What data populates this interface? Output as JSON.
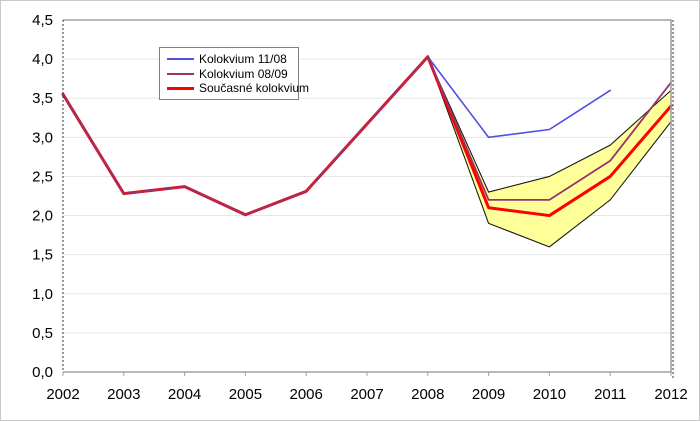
{
  "chart_data": {
    "type": "line",
    "title": "",
    "xlabel": "",
    "ylabel": "",
    "x": [
      2002,
      2003,
      2004,
      2005,
      2006,
      2007,
      2008,
      2009,
      2010,
      2011,
      2012
    ],
    "x_tick_labels": [
      "2002",
      "2003",
      "2004",
      "2005",
      "2006",
      "2007",
      "2008",
      "2009",
      "2010",
      "2011",
      "2012"
    ],
    "ylim": [
      0,
      4.5
    ],
    "y_tick_step": 0.5,
    "y_tick_labels": [
      "0,0",
      "0,5",
      "1,0",
      "1,5",
      "2,0",
      "2,5",
      "3,0",
      "3,5",
      "4,0",
      "4,5"
    ],
    "grid": "horizontal",
    "legend_position": "top-left-inside",
    "series": [
      {
        "key": "kolokvium-11-08",
        "name": "Kolokvium 11/08",
        "color": "#5050e0",
        "width": 1.6,
        "values": [
          3.55,
          2.28,
          2.37,
          2.01,
          2.31,
          3.17,
          4.03,
          3.0,
          3.1,
          3.6,
          null
        ]
      },
      {
        "key": "kolokvium-08-09",
        "name": "Kolokvium 08/09",
        "color": "#993366",
        "width": 1.8,
        "values": [
          3.55,
          2.28,
          2.37,
          2.01,
          2.31,
          3.17,
          4.03,
          2.2,
          2.2,
          2.7,
          3.7
        ]
      },
      {
        "key": "soucasne-kolokvium",
        "name": "Současné kolokvium",
        "color": "#ff0000",
        "width": 3,
        "values": [
          3.55,
          2.28,
          2.37,
          2.01,
          2.31,
          3.17,
          4.03,
          2.1,
          2.0,
          2.5,
          3.4
        ]
      }
    ],
    "uncertainty_band": {
      "x": [
        2008,
        2009,
        2010,
        2011,
        2012
      ],
      "upper": [
        4.03,
        2.3,
        2.5,
        2.9,
        3.6
      ],
      "lower": [
        4.03,
        1.9,
        1.6,
        2.2,
        3.2
      ],
      "fill": "#ffff99",
      "edge": "#1a1a1a"
    },
    "colors": {
      "frame": "#a0a0a0",
      "gridline": "#e6e6e6",
      "tick": "#a0a0a0",
      "dashed_axis": "#333333",
      "text": "#000000",
      "background": "#ffffff"
    }
  }
}
